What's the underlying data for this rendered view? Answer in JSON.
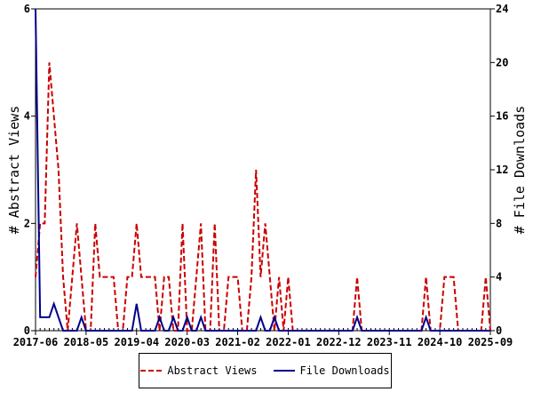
{
  "chart_data": {
    "type": "line",
    "x_ticks": [
      "2017-06",
      "2018-05",
      "2019-04",
      "2020-03",
      "2021-02",
      "2022-01",
      "2022-12",
      "2023-11",
      "2024-10",
      "2025-09"
    ],
    "x": [
      "2017-06",
      "2017-07",
      "2017-08",
      "2017-09",
      "2017-10",
      "2017-11",
      "2017-12",
      "2018-01",
      "2018-02",
      "2018-03",
      "2018-04",
      "2018-05",
      "2018-06",
      "2018-07",
      "2018-08",
      "2018-09",
      "2018-10",
      "2018-11",
      "2018-12",
      "2019-01",
      "2019-02",
      "2019-03",
      "2019-04",
      "2019-05",
      "2019-06",
      "2019-07",
      "2019-08",
      "2019-09",
      "2019-10",
      "2019-11",
      "2019-12",
      "2020-01",
      "2020-02",
      "2020-03",
      "2020-04",
      "2020-05",
      "2020-06",
      "2020-07",
      "2020-08",
      "2020-09",
      "2020-10",
      "2020-11",
      "2020-12",
      "2021-01",
      "2021-02",
      "2021-03",
      "2021-04",
      "2021-05",
      "2021-06",
      "2021-07",
      "2021-08",
      "2021-09",
      "2021-10",
      "2021-11",
      "2021-12",
      "2022-01",
      "2022-02",
      "2022-03",
      "2022-04",
      "2022-05",
      "2022-06",
      "2022-07",
      "2022-08",
      "2022-09",
      "2022-10",
      "2022-11",
      "2022-12",
      "2023-01",
      "2023-02",
      "2023-03",
      "2023-04",
      "2023-05",
      "2023-06",
      "2023-07",
      "2023-08",
      "2023-09",
      "2023-10",
      "2023-11",
      "2023-12",
      "2024-01",
      "2024-02",
      "2024-03",
      "2024-04",
      "2024-05",
      "2024-06",
      "2024-07",
      "2024-08",
      "2024-09",
      "2024-10",
      "2024-11",
      "2024-12",
      "2025-01",
      "2025-02",
      "2025-03",
      "2025-04",
      "2025-05",
      "2025-06",
      "2025-07",
      "2025-08",
      "2025-09"
    ],
    "series": [
      {
        "name": "Abstract Views",
        "axis": "left",
        "color": "#cc0000",
        "dash": true,
        "values": [
          1,
          2,
          2,
          5,
          4,
          3,
          1,
          0,
          1,
          2,
          1,
          0,
          0,
          2,
          1,
          1,
          1,
          1,
          0,
          0,
          1,
          1,
          2,
          1,
          1,
          1,
          1,
          0,
          1,
          1,
          0,
          0,
          2,
          0,
          0,
          1,
          2,
          0,
          0,
          2,
          0,
          0,
          1,
          1,
          1,
          0,
          0,
          1,
          3,
          1,
          2,
          1,
          0,
          1,
          0,
          1,
          0,
          0,
          0,
          0,
          0,
          0,
          0,
          0,
          0,
          0,
          0,
          0,
          0,
          0,
          1,
          0,
          0,
          0,
          0,
          0,
          0,
          0,
          0,
          0,
          0,
          0,
          0,
          0,
          0,
          1,
          0,
          0,
          0,
          1,
          1,
          1,
          0,
          0,
          0,
          0,
          0,
          0,
          1,
          0
        ]
      },
      {
        "name": "File Downloads",
        "axis": "right",
        "color": "#00008b",
        "dash": false,
        "values": [
          24,
          1,
          1,
          1,
          2,
          1,
          0,
          0,
          0,
          0,
          1,
          0,
          0,
          0,
          0,
          0,
          0,
          0,
          0,
          0,
          0,
          0,
          2,
          0,
          0,
          0,
          0,
          1,
          0,
          0,
          1,
          0,
          0,
          1,
          0,
          0,
          1,
          0,
          0,
          0,
          0,
          0,
          0,
          0,
          0,
          0,
          0,
          0,
          0,
          1,
          0,
          0,
          1,
          0,
          0,
          0,
          0,
          0,
          0,
          0,
          0,
          0,
          0,
          0,
          0,
          0,
          0,
          0,
          0,
          0,
          1,
          0,
          0,
          0,
          0,
          0,
          0,
          0,
          0,
          0,
          0,
          0,
          0,
          0,
          0,
          1,
          0,
          0,
          0,
          0,
          0,
          0,
          0,
          0,
          0,
          0,
          0,
          0,
          0,
          0
        ]
      }
    ],
    "ylabel_left": "# Abstract Views",
    "ylabel_right": "# File Downloads",
    "ylim_left": [
      0,
      6
    ],
    "yticks_left": [
      0,
      2,
      4,
      6
    ],
    "ylim_right": [
      0,
      24
    ],
    "yticks_right": [
      0,
      4,
      8,
      12,
      16,
      20,
      24
    ],
    "grid": false,
    "legend_position": "bottom-center"
  }
}
